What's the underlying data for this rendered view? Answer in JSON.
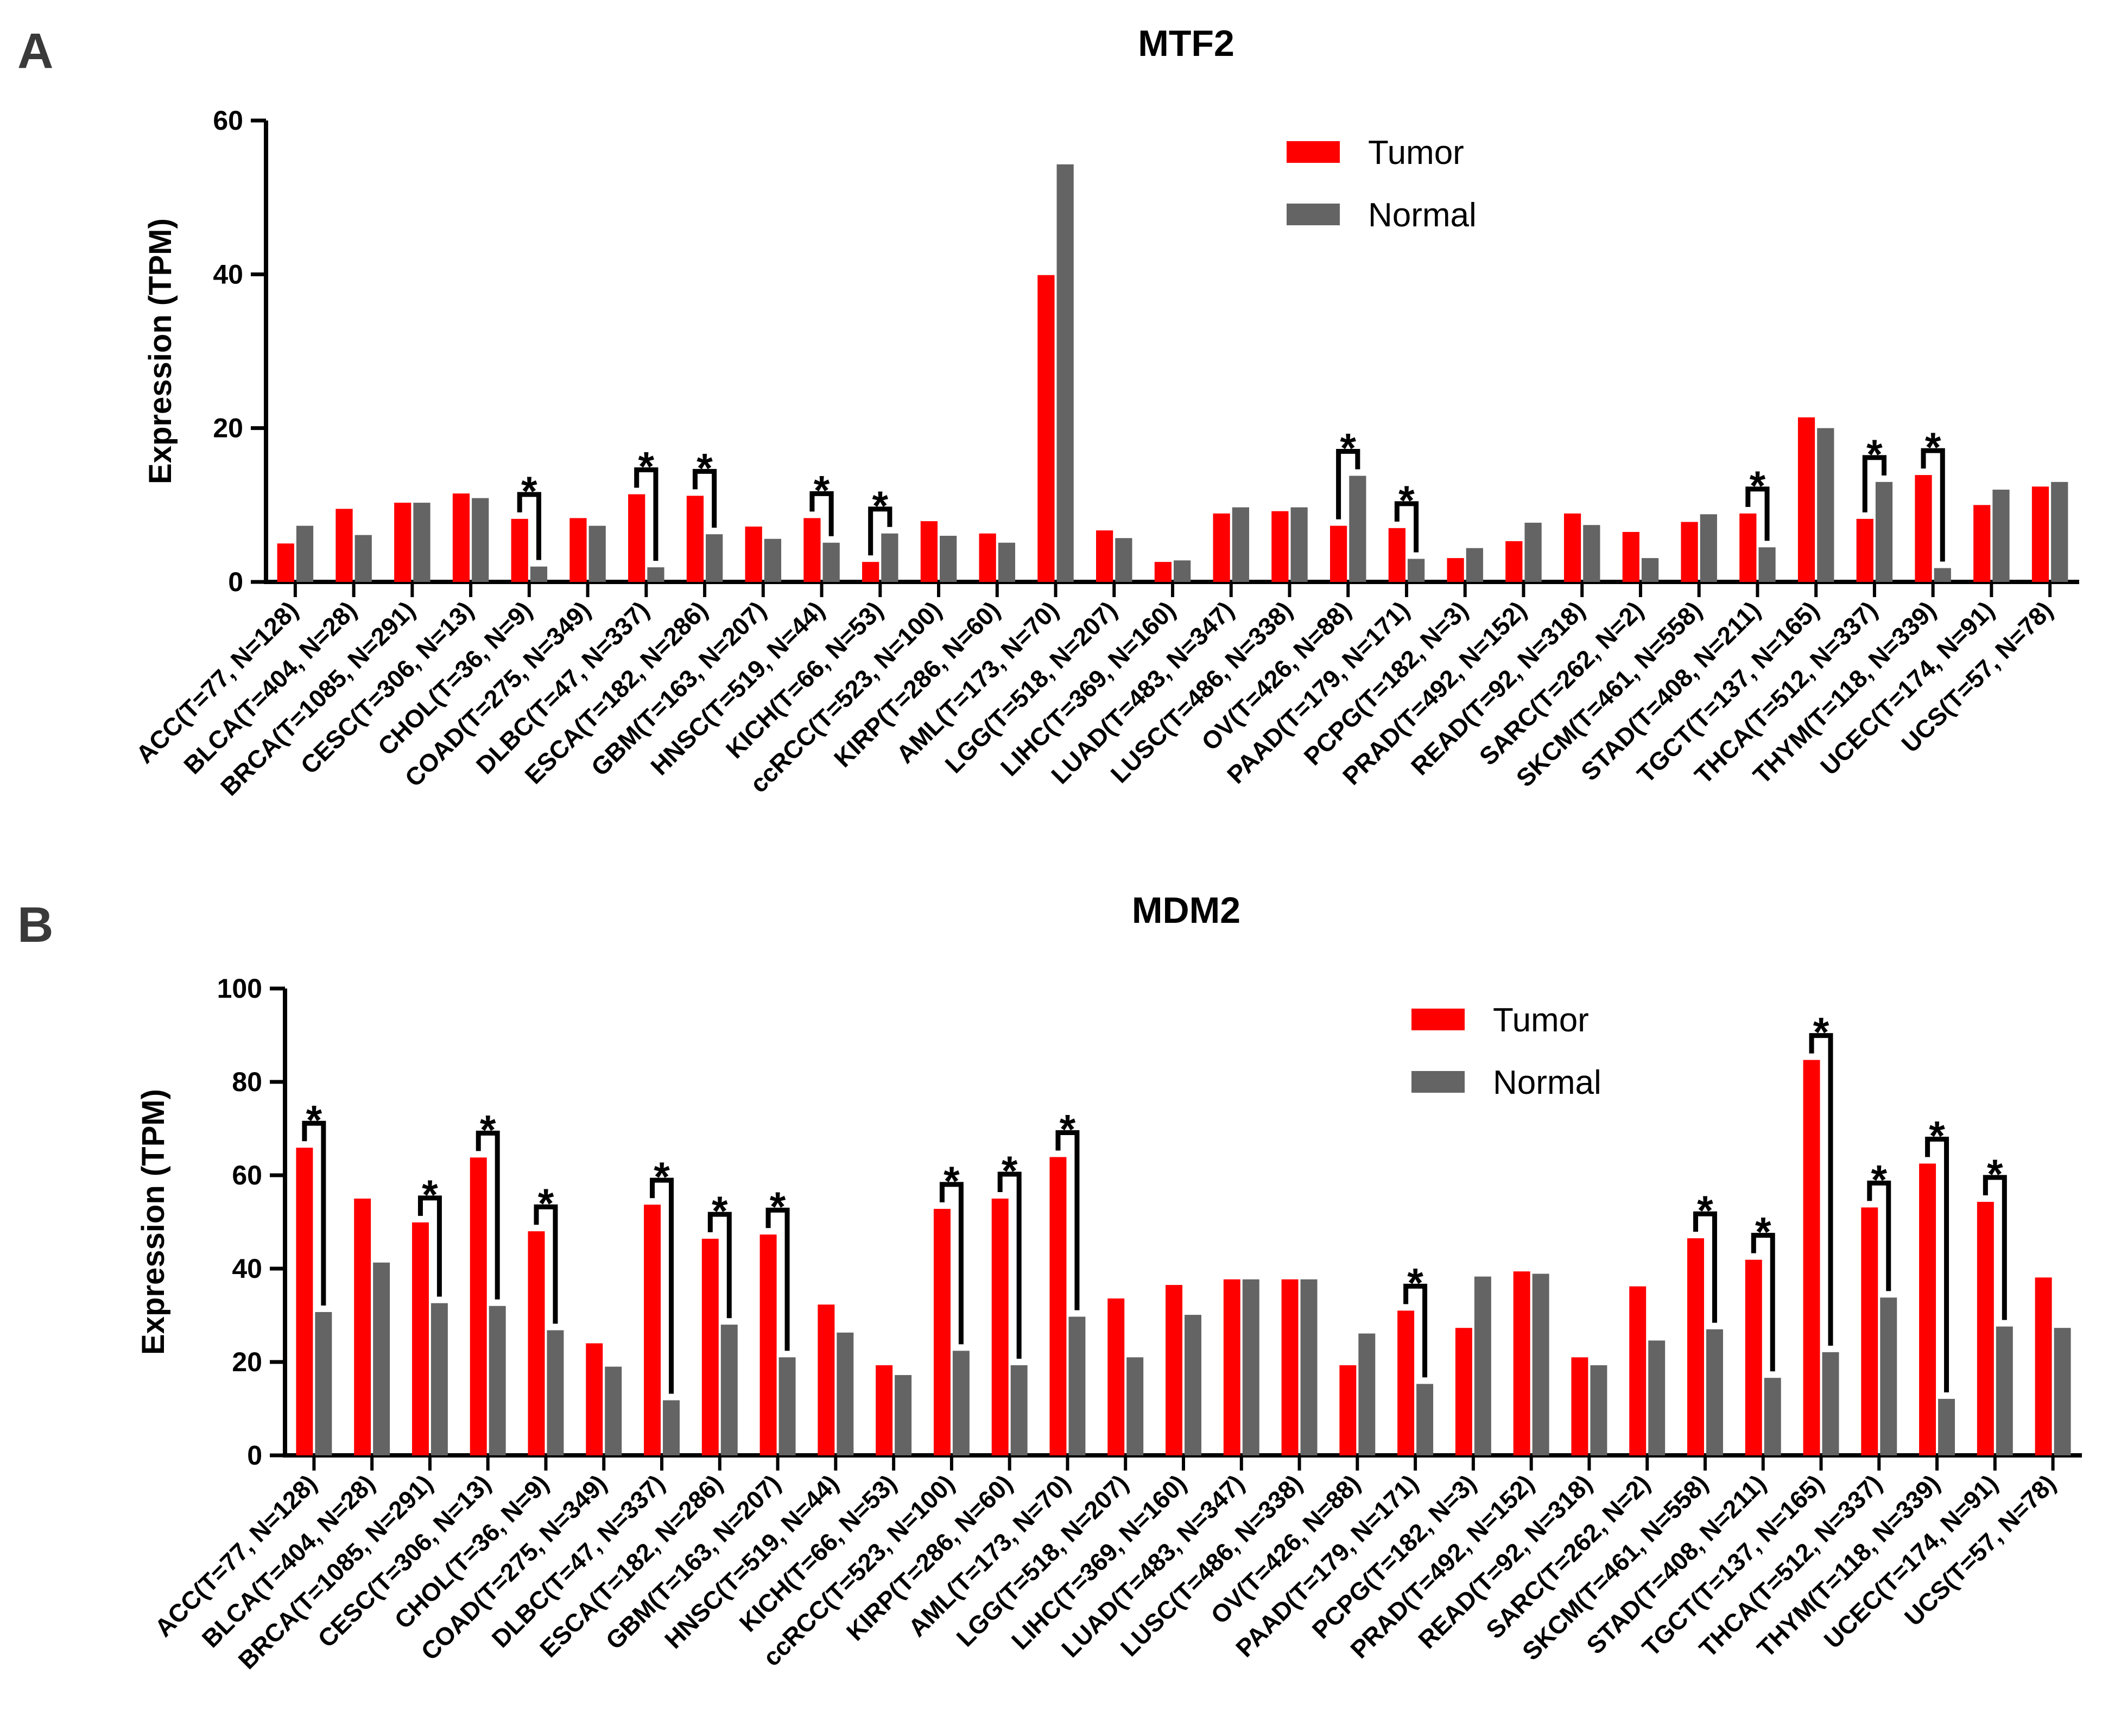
{
  "colors": {
    "tumor": "#ff0000",
    "normal": "#646464",
    "axis": "#000000"
  },
  "categories": [
    "ACC(T=77, N=128)",
    "BLCA(T=404, N=28)",
    "BRCA(T=1085, N=291)",
    "CESC(T=306, N=13)",
    "CHOL(T=36, N=9)",
    "COAD(T=275, N=349)",
    "DLBC(T=47, N=337)",
    "ESCA(T=182, N=286)",
    "GBM(T=163, N=207)",
    "HNSC(T=519, N=44)",
    "KICH(T=66, N=53)",
    "ccRCC(T=523, N=100)",
    "KIRP(T=286, N=60)",
    "AML(T=173, N=70)",
    "LGG(T=518, N=207)",
    "LIHC(T=369, N=160)",
    "LUAD(T=483, N=347)",
    "LUSC(T=486, N=338)",
    "OV(T=426, N=88)",
    "PAAD(T=179, N=171)",
    "PCPG(T=182, N=3)",
    "PRAD(T=492, N=152)",
    "READ(T=92, N=318)",
    "SARC(T=262, N=2)",
    "SKCM(T=461, N=558)",
    "STAD(T=408, N=211)",
    "TGCT(T=137, N=165)",
    "THCA(T=512, N=337)",
    "THYM(T=118, N=339)",
    "UCEC(T=174, N=91)",
    "UCS(T=57, N=78)"
  ],
  "chart_data": [
    {
      "type": "bar",
      "panel_label": "A",
      "title": "MTF2",
      "xlabel": "",
      "ylabel": "Expression (TPM)",
      "ylim": [
        0,
        60
      ],
      "yticks": [
        "0",
        "20",
        "40",
        "60"
      ],
      "legend": {
        "placement": "top-right",
        "entries": [
          "Tumor",
          "Normal"
        ]
      },
      "series": [
        {
          "name": "Tumor",
          "values": [
            5.0,
            9.5,
            10.3,
            11.5,
            8.2,
            8.3,
            11.4,
            11.2,
            7.2,
            8.3,
            2.6,
            7.9,
            6.3,
            39.9,
            6.7,
            2.6,
            8.9,
            9.2,
            7.3,
            7.0,
            3.1,
            5.3,
            8.9,
            6.5,
            7.8,
            8.9,
            21.4,
            8.2,
            13.9,
            10.0,
            12.4
          ]
        },
        {
          "name": "Normal",
          "values": [
            7.3,
            6.1,
            10.3,
            10.9,
            2.0,
            7.3,
            1.9,
            6.2,
            5.6,
            5.1,
            6.3,
            6.0,
            5.1,
            54.3,
            5.7,
            2.8,
            9.7,
            9.7,
            13.8,
            3.0,
            4.4,
            7.7,
            7.4,
            3.1,
            8.8,
            4.5,
            20.0,
            13.0,
            1.8,
            12.0,
            13.0
          ]
        }
      ],
      "significant": [
        4,
        6,
        7,
        9,
        10,
        18,
        19,
        25,
        27,
        28
      ],
      "significance_label": "*"
    },
    {
      "type": "bar",
      "panel_label": "B",
      "title": "MDM2",
      "xlabel": "",
      "ylabel": "Expression (TPM)",
      "ylim": [
        0,
        100
      ],
      "yticks": [
        "0",
        "20",
        "40",
        "60",
        "80",
        "100"
      ],
      "legend": {
        "placement": "top-right",
        "entries": [
          "Tumor",
          "Normal"
        ]
      },
      "series": [
        {
          "name": "Tumor",
          "values": [
            65.9,
            55.0,
            49.9,
            63.8,
            48.0,
            24.0,
            53.7,
            46.4,
            47.3,
            32.3,
            19.3,
            52.8,
            55.0,
            63.9,
            33.6,
            36.5,
            37.7,
            37.7,
            19.3,
            31.0,
            27.3,
            39.4,
            21.0,
            36.2,
            46.5,
            41.9,
            84.7,
            53.1,
            62.5,
            54.3,
            38.1
          ]
        },
        {
          "name": "Normal",
          "values": [
            30.7,
            41.3,
            32.6,
            32.0,
            26.8,
            19.0,
            11.8,
            28.0,
            21.0,
            26.3,
            17.2,
            22.4,
            19.3,
            29.7,
            21.0,
            30.1,
            37.7,
            37.7,
            26.1,
            15.3,
            38.3,
            38.9,
            19.3,
            24.6,
            27.0,
            16.6,
            22.1,
            33.8,
            12.1,
            27.6,
            27.3
          ]
        }
      ],
      "significant": [
        0,
        2,
        3,
        4,
        6,
        7,
        8,
        11,
        12,
        13,
        19,
        24,
        25,
        26,
        27,
        28,
        29
      ],
      "significance_label": "*"
    }
  ]
}
